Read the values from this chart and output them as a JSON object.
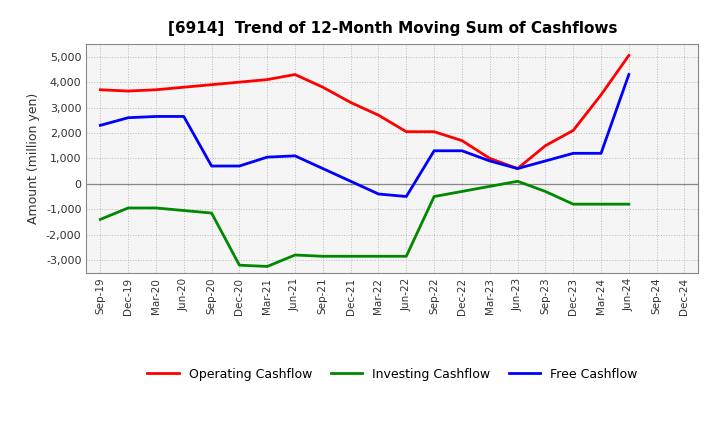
{
  "title": "[6914]  Trend of 12-Month Moving Sum of Cashflows",
  "ylabel": "Amount (million yen)",
  "x_labels": [
    "Sep-19",
    "Dec-19",
    "Mar-20",
    "Jun-20",
    "Sep-20",
    "Dec-20",
    "Mar-21",
    "Jun-21",
    "Sep-21",
    "Dec-21",
    "Mar-22",
    "Jun-22",
    "Sep-22",
    "Dec-22",
    "Mar-23",
    "Jun-23",
    "Sep-23",
    "Dec-23",
    "Mar-24",
    "Jun-24",
    "Sep-24",
    "Dec-24"
  ],
  "operating": [
    3700,
    3650,
    3700,
    3800,
    3900,
    4000,
    4100,
    4300,
    3800,
    3200,
    2700,
    2050,
    2050,
    1700,
    1000,
    600,
    1500,
    2100,
    3500,
    5050,
    null,
    null
  ],
  "investing": [
    -1400,
    -950,
    -950,
    -1050,
    -1150,
    -3200,
    -3250,
    -2800,
    -2850,
    -2850,
    -2850,
    -2850,
    -500,
    -300,
    -100,
    100,
    -300,
    -800,
    -800,
    -800,
    null,
    null
  ],
  "free": [
    2300,
    2600,
    2650,
    2650,
    700,
    700,
    1050,
    1100,
    600,
    100,
    -400,
    -500,
    1300,
    1300,
    900,
    600,
    900,
    1200,
    1200,
    4300,
    null,
    null
  ],
  "ylim": [
    -3500,
    5500
  ],
  "yticks": [
    -3000,
    -2000,
    -1000,
    0,
    1000,
    2000,
    3000,
    4000,
    5000
  ],
  "operating_color": "#ff0000",
  "investing_color": "#008800",
  "free_color": "#0000ff",
  "background_color": "#ffffff",
  "plot_bg_color": "#f5f5f5",
  "grid_color": "#bbbbbb",
  "line_width": 2.0,
  "legend_labels": [
    "Operating Cashflow",
    "Investing Cashflow",
    "Free Cashflow"
  ]
}
